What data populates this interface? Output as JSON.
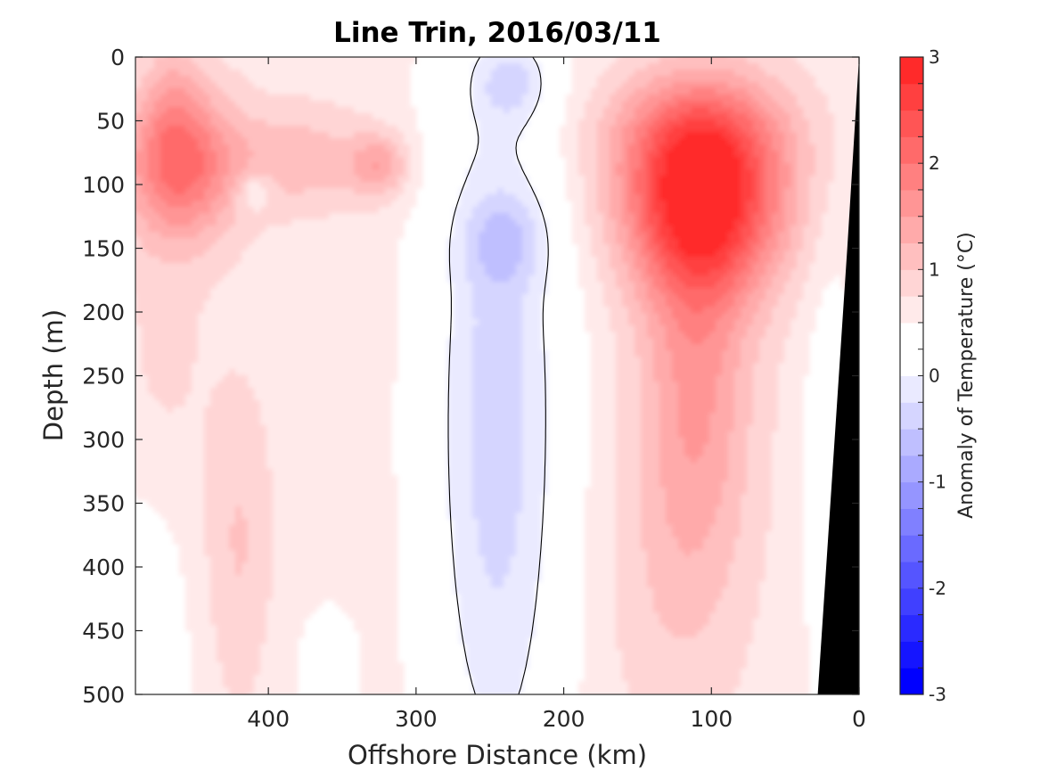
{
  "chart_data": {
    "type": "heatmap",
    "title": "Line Trin, 2016/03/11",
    "xlabel": "Offshore Distance (km)",
    "ylabel": "Depth (m)",
    "xlim": [
      490,
      0
    ],
    "ylim": [
      0,
      500
    ],
    "x_reversed": true,
    "y_reversed": true,
    "x_ticks": [
      "400",
      "300",
      "200",
      "100",
      "0"
    ],
    "x_tick_values": [
      400,
      300,
      200,
      100,
      0
    ],
    "y_ticks": [
      "0",
      "50",
      "100",
      "150",
      "200",
      "250",
      "300",
      "350",
      "400",
      "450",
      "500"
    ],
    "y_tick_values": [
      0,
      50,
      100,
      150,
      200,
      250,
      300,
      350,
      400,
      450,
      500
    ],
    "colorbar": {
      "label": "Anomaly of Temperature (°C)",
      "range": [
        -3,
        3
      ],
      "ticks": [
        "-3",
        "-2",
        "-1",
        "0",
        "1",
        "2",
        "3"
      ],
      "tick_values": [
        -3,
        -2,
        -1,
        0,
        1,
        2,
        3
      ],
      "levels": [
        -3,
        -2.75,
        -2.5,
        -2.25,
        -2,
        -1.75,
        -1.5,
        -1.25,
        -1,
        -0.75,
        -0.5,
        -0.25,
        0,
        0.25,
        0.5,
        0.75,
        1,
        1.25,
        1.5,
        1.75,
        2,
        2.25,
        2.5,
        2.75,
        3
      ],
      "colors": [
        "#0000ff",
        "#1515ff",
        "#2a2aff",
        "#4040ff",
        "#5555ff",
        "#6a6aff",
        "#8080ff",
        "#9595ff",
        "#aaaaff",
        "#bfbfff",
        "#d5d5ff",
        "#eaeaff",
        "#ffffff",
        "#ffffff",
        "#ffeaea",
        "#ffd5d5",
        "#ffbfbf",
        "#ffaaaa",
        "#ff9595",
        "#ff8080",
        "#ff6a6a",
        "#ff5555",
        "#ff4040",
        "#ff2a2a"
      ]
    },
    "zero_contour_color": "#000000",
    "bathymetry_color": "#000000",
    "features": [
      {
        "x": 460,
        "y": 85,
        "value": 2.0
      },
      {
        "x": 322,
        "y": 85,
        "value": 1.5
      },
      {
        "x": 100,
        "y": 110,
        "value": 2.75
      },
      {
        "x": 240,
        "y": 145,
        "value": -0.2
      },
      {
        "x": 410,
        "y": 105,
        "value": -0.1
      }
    ]
  }
}
